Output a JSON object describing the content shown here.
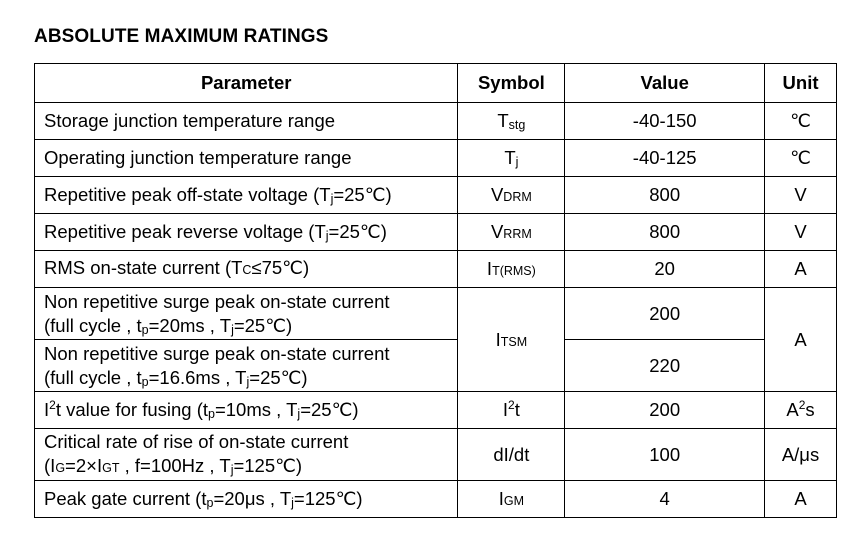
{
  "title": "ABSOLUTE MAXIMUM RATINGS",
  "headers": {
    "parameter": "Parameter",
    "symbol": "Symbol",
    "value": "Value",
    "unit": "Unit"
  },
  "rows": [
    {
      "param": "Storage junction temperature range",
      "sym_main": "T",
      "sym_sub": "stg",
      "value": "-40-150",
      "unit": "℃"
    },
    {
      "param": "Operating junction temperature range",
      "sym_main": "T",
      "sym_sub": "j",
      "value": "-40-125",
      "unit": "℃"
    },
    {
      "param_a": "Repetitive peak off-state voltage (T",
      "param_sub": "j",
      "param_b": "=25℃)",
      "sym_main": "V",
      "sym_sub": "DRM",
      "value": "800",
      "unit": "V"
    },
    {
      "param_a": "Repetitive peak reverse voltage (T",
      "param_sub": "j",
      "param_b": "=25℃)",
      "sym_main": "V",
      "sym_sub": "RRM",
      "value": "800",
      "unit": "V"
    },
    {
      "param_a": "RMS on-state current (T",
      "param_sub": "C",
      "param_b": "≤75℃)",
      "sym_main": "I",
      "sym_sub": "T(RMS)",
      "value": "20",
      "unit": "A"
    },
    {
      "line1": "Non repetitive surge peak on-state current",
      "l2a": "(full cycle , t",
      "l2sub1": "p",
      "l2b": "=20ms , T",
      "l2sub2": "j",
      "l2c": "=25℃)",
      "value": "200"
    },
    {
      "line1": "Non repetitive surge peak on-state current",
      "l2a": "(full cycle , t",
      "l2sub1": "p",
      "l2b": "=16.6ms , T",
      "l2sub2": "j",
      "l2c": "=25℃)",
      "value": "220"
    },
    {
      "pa": "I",
      "psup": "2",
      "pb": "t value for fusing (t",
      "psub1": "p",
      "pc": "=10ms , T",
      "psub2": "j",
      "pd": "=25℃)",
      "sym_main": "I",
      "sym_sup": "2",
      "sym_after": "t",
      "value": "200",
      "unit_main": "A",
      "unit_sup": "2",
      "unit_after": "s"
    },
    {
      "line1": "Critical rate of rise of on-state current",
      "l2a": "(I",
      "l2sub1": "G",
      "l2b": "=2×I",
      "l2sub2": "GT",
      "l2c": " , f=100Hz , T",
      "l2sub3": "j",
      "l2d": "=125℃)",
      "sym": "dI/dt",
      "value": "100",
      "unit": "A/μs"
    },
    {
      "pa": "Peak gate current (t",
      "psub1": "p",
      "pb": "=20μs , T",
      "psub2": "j",
      "pc": "=125℃)",
      "sym_main": "I",
      "sym_sub": "GM",
      "value": "4",
      "unit": "A"
    }
  ],
  "itsm": {
    "sym_main": "I",
    "sym_sub": "TSM",
    "unit": "A"
  }
}
